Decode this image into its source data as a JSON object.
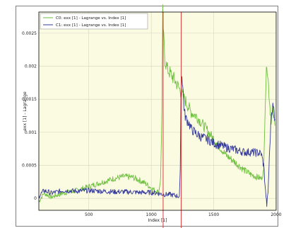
{
  "colors": {
    "plot_background": "#fbfbe2",
    "grid": "#d6d6c0",
    "series_c0": "#6dbf3e",
    "series_c1": "#34389a",
    "marker": "#d42a2a",
    "frame": "#000000"
  },
  "chart_data": {
    "type": "line",
    "title": "",
    "xlabel": "Index [1]",
    "ylabel": "exx [1] - Lagrange",
    "xlim": [
      100,
      2000
    ],
    "ylim": [
      -0.00018,
      0.00282
    ],
    "x_ticks": [
      500,
      1000,
      1500,
      2000
    ],
    "y_ticks": [
      0,
      0.0005,
      0.001,
      0.0015,
      0.002,
      0.0025
    ],
    "x_tick_labels": [
      "500",
      "1000",
      "1500",
      "2000"
    ],
    "y_tick_labels": [
      "0",
      "0.0005",
      "0.001",
      "0.0015",
      "0.002",
      "0.0025"
    ],
    "grid": true,
    "legend_position": "top-left",
    "vertical_markers": [
      1095,
      1240
    ],
    "series": [
      {
        "name": "C0: exx [1] - Lagrange vs. Index [1]",
        "color": "#6dbf3e",
        "points": [
          [
            100,
            -5e-05
          ],
          [
            140,
            8e-05
          ],
          [
            200,
            2e-05
          ],
          [
            250,
            5e-05
          ],
          [
            300,
            8e-05
          ],
          [
            400,
            0.00012
          ],
          [
            500,
            0.00018
          ],
          [
            600,
            0.00024
          ],
          [
            700,
            0.0003
          ],
          [
            780,
            0.00033
          ],
          [
            850,
            0.00032
          ],
          [
            900,
            0.00028
          ],
          [
            950,
            0.00023
          ],
          [
            1000,
            0.00016
          ],
          [
            1030,
            0.00012
          ],
          [
            1060,
            0.0001
          ],
          [
            1075,
            0.0003
          ],
          [
            1085,
            0.0013
          ],
          [
            1092,
            0.0028
          ],
          [
            1100,
            0.0024
          ],
          [
            1110,
            0.0021
          ],
          [
            1130,
            0.00195
          ],
          [
            1150,
            0.0019
          ],
          [
            1200,
            0.00175
          ],
          [
            1240,
            0.0016
          ],
          [
            1280,
            0.00145
          ],
          [
            1320,
            0.0013
          ],
          [
            1360,
            0.00125
          ],
          [
            1400,
            0.00115
          ],
          [
            1440,
            0.00105
          ],
          [
            1480,
            0.00095
          ],
          [
            1520,
            0.00085
          ],
          [
            1560,
            0.00075
          ],
          [
            1600,
            0.00065
          ],
          [
            1650,
            0.00058
          ],
          [
            1700,
            0.0005
          ],
          [
            1750,
            0.00042
          ],
          [
            1800,
            0.00036
          ],
          [
            1850,
            0.00032
          ],
          [
            1880,
            0.0003
          ],
          [
            1900,
            0.0004
          ],
          [
            1910,
            0.0013
          ],
          [
            1925,
            0.0021
          ],
          [
            1935,
            0.0018
          ],
          [
            1950,
            0.0014
          ],
          [
            1960,
            0.0012
          ],
          [
            1975,
            0.0013
          ],
          [
            1990,
            0.0011
          ]
        ]
      },
      {
        "name": "C1: exx [1] - Lagrange vs. Index [1]",
        "color": "#34389a",
        "points": [
          [
            100,
            3e-05
          ],
          [
            140,
            0.00012
          ],
          [
            200,
            8e-05
          ],
          [
            250,
            0.0001
          ],
          [
            300,
            0.00012
          ],
          [
            400,
            0.00011
          ],
          [
            500,
            0.00012
          ],
          [
            600,
            0.00011
          ],
          [
            700,
            0.0001
          ],
          [
            800,
            0.0001
          ],
          [
            900,
            9e-05
          ],
          [
            1000,
            9e-05
          ],
          [
            1050,
            8e-05
          ],
          [
            1100,
            6e-05
          ],
          [
            1150,
            6e-05
          ],
          [
            1200,
            4e-05
          ],
          [
            1225,
            3e-05
          ],
          [
            1232,
            0.0004
          ],
          [
            1238,
            0.0016
          ],
          [
            1245,
            0.0019
          ],
          [
            1255,
            0.0016
          ],
          [
            1265,
            0.0013
          ],
          [
            1280,
            0.0012
          ],
          [
            1300,
            0.00115
          ],
          [
            1320,
            0.00105
          ],
          [
            1360,
            0.00098
          ],
          [
            1400,
            0.00093
          ],
          [
            1440,
            0.0009
          ],
          [
            1480,
            0.00086
          ],
          [
            1520,
            0.00082
          ],
          [
            1560,
            0.0008
          ],
          [
            1600,
            0.00077
          ],
          [
            1650,
            0.00075
          ],
          [
            1700,
            0.00072
          ],
          [
            1750,
            0.0007
          ],
          [
            1800,
            0.0007
          ],
          [
            1850,
            0.00069
          ],
          [
            1880,
            0.00068
          ],
          [
            1900,
            0.0005
          ],
          [
            1915,
            0.0001
          ],
          [
            1925,
            -0.0001
          ],
          [
            1935,
            0.0001
          ],
          [
            1945,
            0.0006
          ],
          [
            1960,
            0.00125
          ],
          [
            1970,
            0.0014
          ],
          [
            1980,
            0.00135
          ],
          [
            1990,
            0.0012
          ]
        ]
      }
    ]
  }
}
